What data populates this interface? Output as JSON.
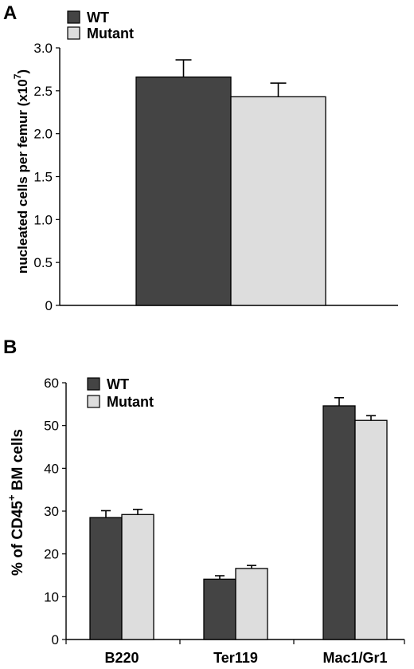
{
  "chart_data": [
    {
      "type": "bar",
      "panel_label": "A",
      "categories": [
        ""
      ],
      "series": [
        {
          "name": "WT",
          "values": [
            2.66
          ],
          "errors": [
            0.2
          ],
          "color": "#444444"
        },
        {
          "name": "Mutant",
          "values": [
            2.43
          ],
          "errors": [
            0.16
          ],
          "color": "#dddddd"
        }
      ],
      "ylabel_main": "nucleated cells per femur (x10",
      "ylabel_sup": "7",
      "ylabel_end": ")",
      "ylim": [
        0,
        3.0
      ],
      "yticks": [
        "0",
        "0.5",
        "1.0",
        "1.5",
        "2.0",
        "2.5",
        "3.0"
      ],
      "legend_position": "top-left",
      "grid": false
    },
    {
      "type": "bar",
      "panel_label": "B",
      "categories": [
        "B220",
        "Ter119",
        "Mac1/Gr1"
      ],
      "series": [
        {
          "name": "WT",
          "values": [
            28.5,
            14.1,
            54.6
          ],
          "errors": [
            1.6,
            0.8,
            1.9
          ],
          "color": "#444444"
        },
        {
          "name": "Mutant",
          "values": [
            29.2,
            16.6,
            51.2
          ],
          "errors": [
            1.2,
            0.7,
            1.1
          ],
          "color": "#dddddd"
        }
      ],
      "ylabel_main": "% of CD45",
      "ylabel_sup": "+",
      "ylabel_end": " BM cells",
      "ylim": [
        0,
        60
      ],
      "yticks": [
        "0",
        "10",
        "20",
        "30",
        "40",
        "50",
        "60"
      ],
      "legend_position": "top-left",
      "grid": false
    }
  ]
}
